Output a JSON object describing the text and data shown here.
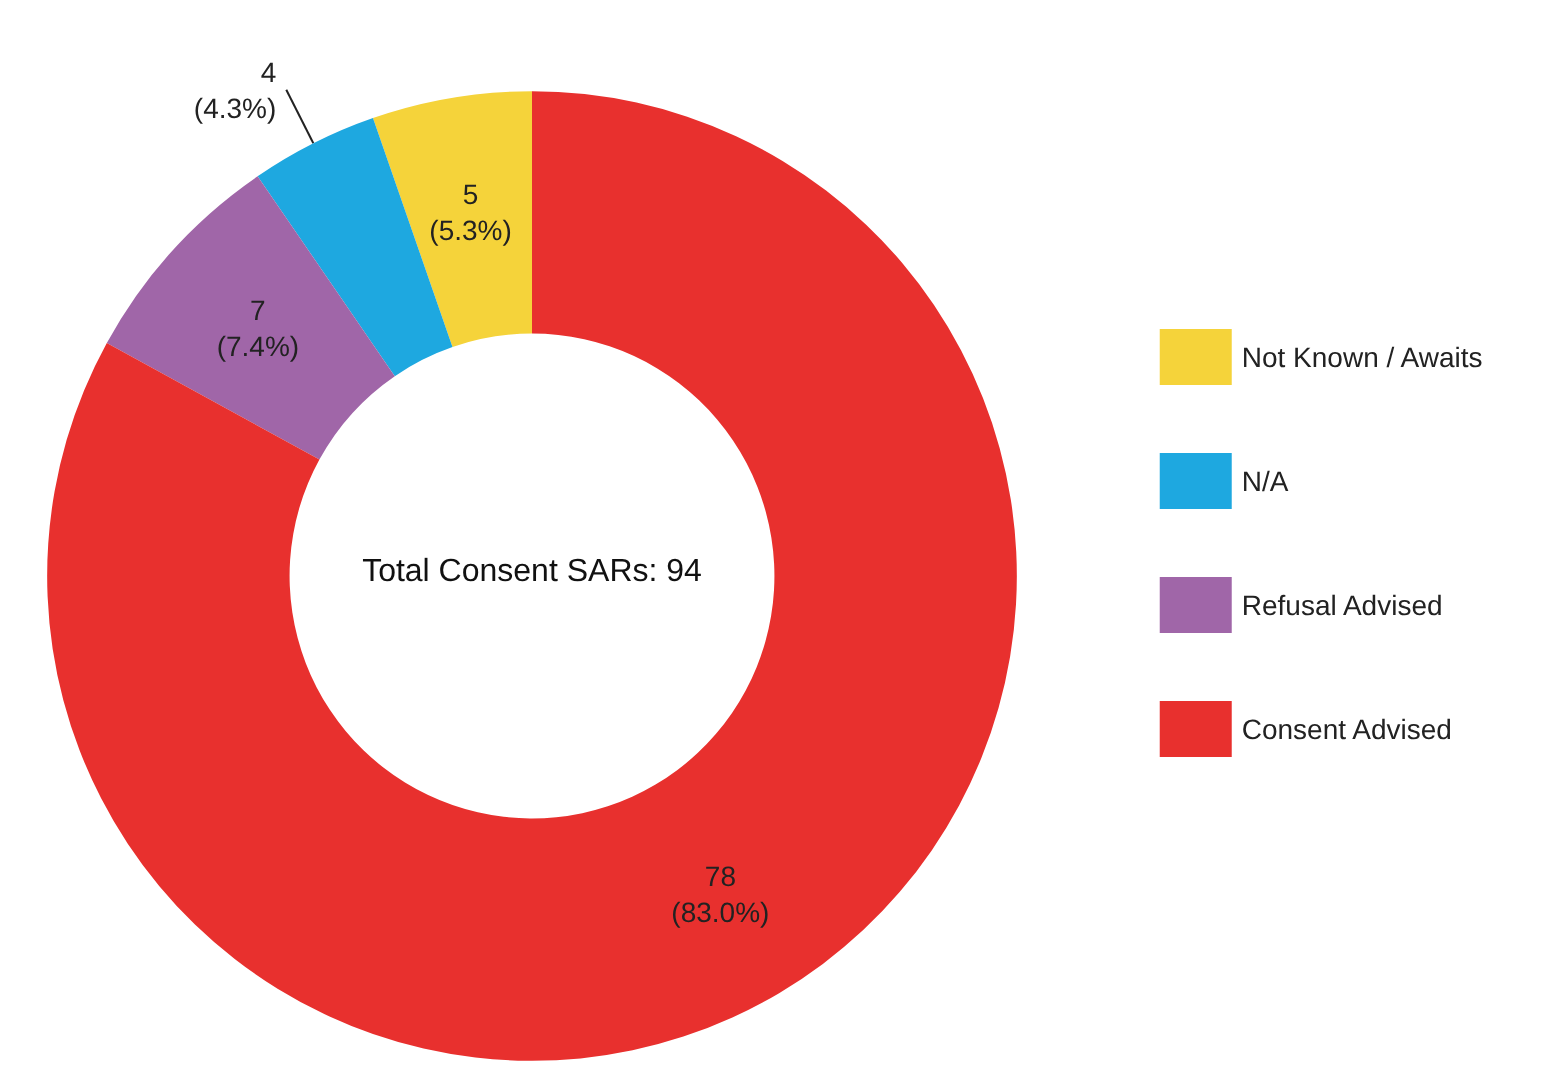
{
  "chart_data": {
    "type": "donut",
    "categories": [
      "Not Known / Awaits",
      "N/A",
      "Refusal Advised",
      "Consent Advised"
    ],
    "values": [
      5,
      4,
      7,
      78
    ],
    "colors": [
      "#f5d33a",
      "#1ea8e0",
      "#a066a8",
      "#e8302e"
    ],
    "value_labels": [
      "5\n(5.3%)",
      "4\n(4.3%)",
      "7\n(7.4%)",
      "78\n(83.0%)"
    ],
    "annotations": [
      "Total Consent SARs: 94"
    ],
    "legend": "right"
  }
}
